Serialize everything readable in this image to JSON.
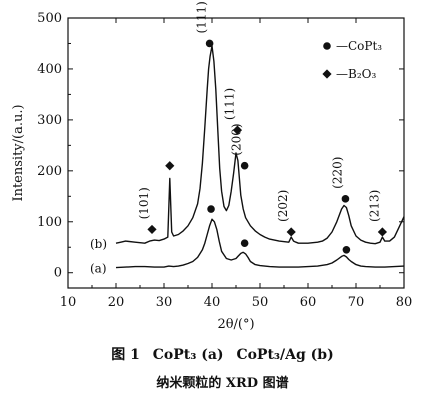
{
  "chart_data": {
    "type": "line",
    "xlabel": "2θ/(°)",
    "ylabel": "Intensity/(a.u.)",
    "xlim": [
      10,
      80
    ],
    "ylim": [
      -30,
      500
    ],
    "xticks": [
      10,
      20,
      30,
      40,
      50,
      60,
      70,
      80
    ],
    "yticks": [
      0,
      100,
      200,
      300,
      400,
      500
    ],
    "legend": {
      "position": "top-right",
      "entries": [
        {
          "marker": "circle",
          "label": "—CoPt₃"
        },
        {
          "marker": "diamond",
          "label": "—B₂O₃"
        }
      ]
    },
    "series": [
      {
        "label": "(a)",
        "x": [
          20,
          22,
          24,
          26,
          28,
          30,
          31,
          32,
          33,
          34,
          35,
          36,
          37,
          38,
          38.5,
          39,
          39.5,
          40,
          40.5,
          41,
          41.5,
          42,
          43,
          44,
          45,
          45.5,
          46,
          46.5,
          47,
          47.5,
          48,
          49,
          50,
          52,
          54,
          56,
          58,
          60,
          62,
          64,
          65,
          66,
          67,
          67.5,
          68,
          68.5,
          69,
          70,
          71,
          72,
          74,
          76,
          78,
          80
        ],
        "y": [
          10,
          11,
          12,
          12,
          11,
          11,
          13,
          12,
          13,
          15,
          18,
          22,
          30,
          45,
          58,
          75,
          92,
          105,
          100,
          85,
          62,
          42,
          28,
          25,
          28,
          33,
          38,
          40,
          37,
          30,
          22,
          16,
          14,
          12,
          11,
          11,
          11,
          12,
          13,
          16,
          19,
          25,
          32,
          34,
          31,
          26,
          22,
          16,
          13,
          12,
          11,
          11,
          12,
          13
        ]
      },
      {
        "label": "(b)",
        "x": [
          20,
          21,
          22,
          24,
          26,
          27,
          28,
          29,
          30,
          30.8,
          31.2,
          31.6,
          32,
          33,
          34,
          35,
          36,
          37,
          37.5,
          38,
          38.5,
          39,
          39.3,
          39.6,
          40,
          40.4,
          40.8,
          41.2,
          41.6,
          42,
          42.5,
          43,
          43.5,
          44,
          44.5,
          45,
          45.4,
          45.7,
          46,
          46.5,
          47,
          48,
          49,
          50,
          51,
          52,
          54,
          56,
          56.5,
          57,
          57.5,
          58,
          60,
          62,
          63,
          64,
          65,
          66,
          67,
          67.5,
          68,
          68.5,
          69,
          70,
          71,
          72,
          73,
          74,
          75,
          75.5,
          76,
          77,
          78,
          79,
          80
        ],
        "y": [
          58,
          60,
          62,
          60,
          58,
          62,
          64,
          63,
          66,
          70,
          185,
          80,
          72,
          75,
          82,
          92,
          108,
          135,
          165,
          215,
          285,
          360,
          400,
          425,
          445,
          415,
          360,
          280,
          205,
          160,
          130,
          122,
          132,
          160,
          195,
          235,
          220,
          185,
          152,
          125,
          108,
          92,
          82,
          75,
          70,
          66,
          62,
          60,
          70,
          62,
          60,
          58,
          58,
          60,
          62,
          68,
          80,
          100,
          125,
          132,
          128,
          112,
          92,
          72,
          64,
          60,
          58,
          57,
          60,
          70,
          62,
          62,
          70,
          90,
          110
        ]
      }
    ],
    "annotations": [
      {
        "text": "(111)",
        "x": 39.5,
        "y": 450,
        "marker": "circle",
        "series": "b"
      },
      {
        "text": "(101)",
        "x": 27.5,
        "y": 85,
        "marker": "diamond",
        "series": "b"
      },
      {
        "text": "(111)",
        "x": 45.3,
        "y": 280,
        "marker": "diamond",
        "series": "b"
      },
      {
        "text": "(200)",
        "x": 46.8,
        "y": 210,
        "marker": "circle",
        "series": "b"
      },
      {
        "text": "(202)",
        "x": 56.5,
        "y": 80,
        "marker": "diamond",
        "series": "b"
      },
      {
        "text": "(220)",
        "x": 67.8,
        "y": 145,
        "marker": "circle",
        "series": "b"
      },
      {
        "text": "(213)",
        "x": 75.5,
        "y": 80,
        "marker": "diamond",
        "series": "b"
      },
      {
        "text": "",
        "x": 31.2,
        "y": 210,
        "marker": "diamond",
        "series": "b"
      },
      {
        "text": "",
        "x": 39.8,
        "y": 125,
        "marker": "circle",
        "series": "a"
      },
      {
        "text": "",
        "x": 46.8,
        "y": 58,
        "marker": "circle",
        "series": "a"
      },
      {
        "text": "",
        "x": 68,
        "y": 45,
        "marker": "circle",
        "series": "a"
      }
    ]
  },
  "caption": {
    "line1": [
      "图 1",
      "CoPt₃ (a)",
      "CoPt₃/Ag (b)"
    ],
    "line2": "纳米颗粒的 XRD 图谱"
  }
}
